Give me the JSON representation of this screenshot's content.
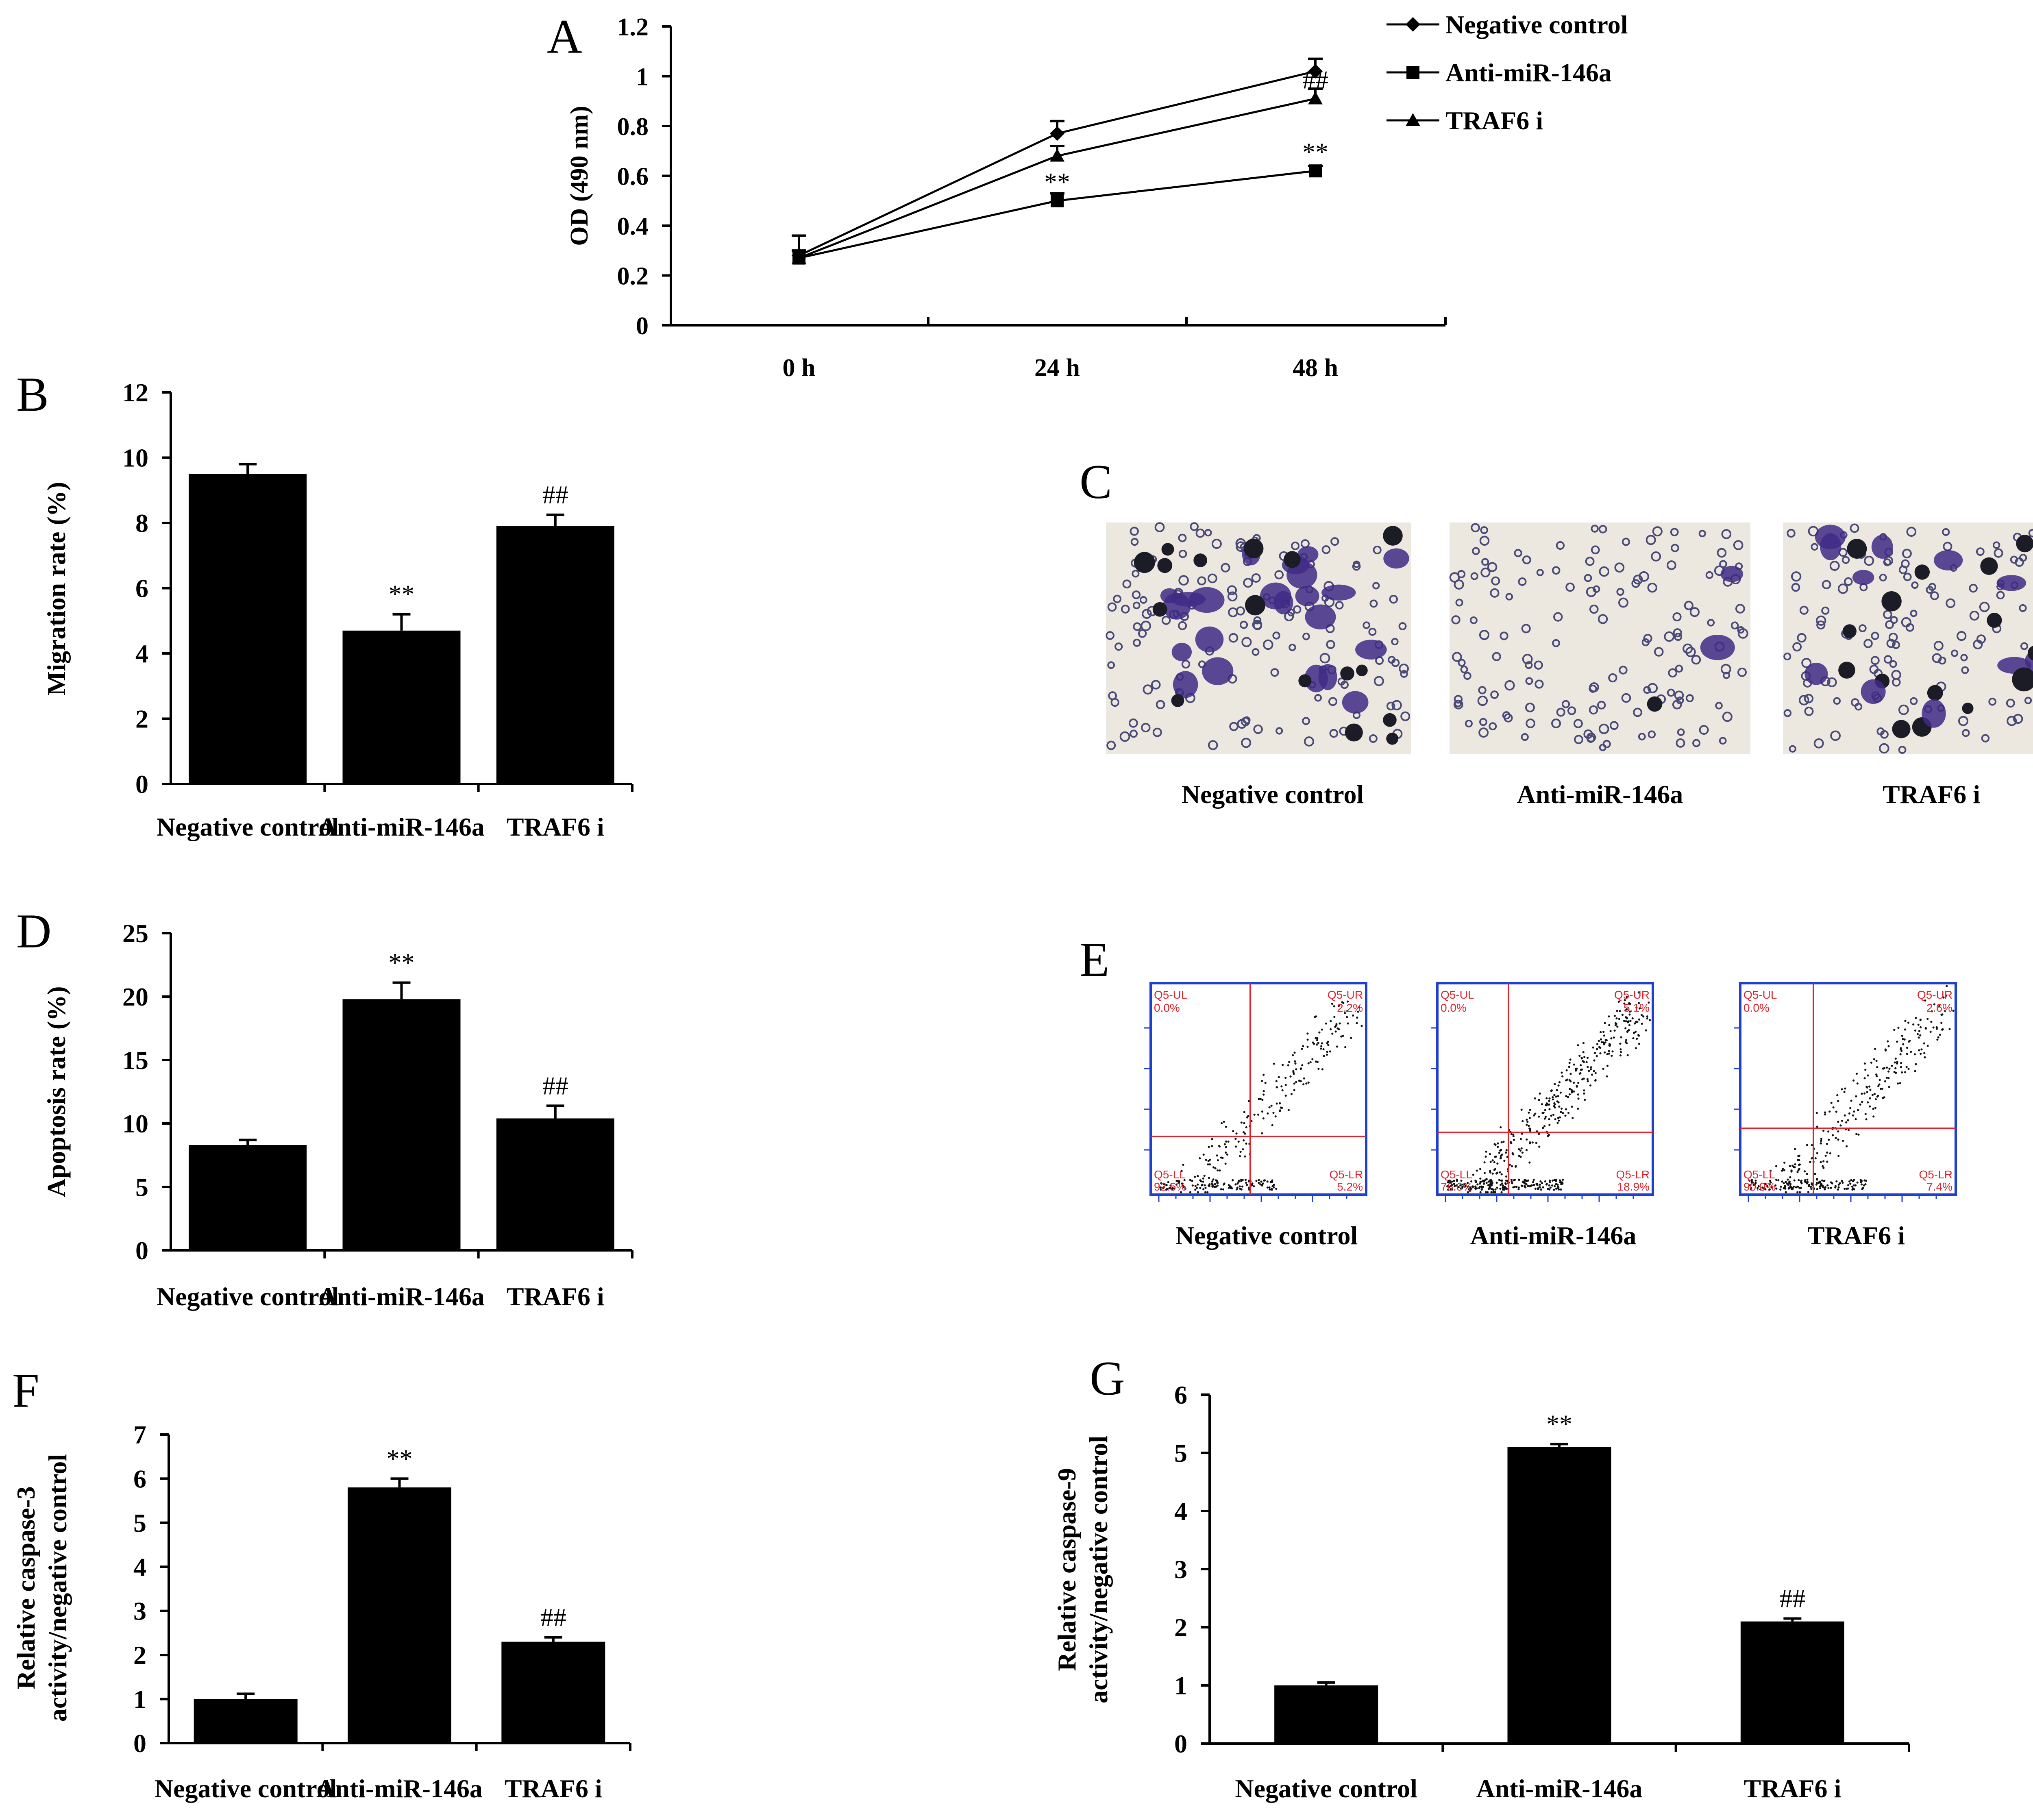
{
  "panels": {
    "A": "A",
    "B": "B",
    "C": "C",
    "D": "D",
    "E": "E",
    "F": "F",
    "G": "G"
  },
  "chart_data": [
    {
      "id": "A",
      "type": "line",
      "x": [
        "0 h",
        "24 h",
        "48 h"
      ],
      "ylabel": "OD (490 nm)",
      "ylim": [
        0,
        1.2
      ],
      "yticks": [
        "0",
        "0.2",
        "0.4",
        "0.6",
        "0.8",
        "1",
        "1.2"
      ],
      "series": [
        {
          "name": "Negative control",
          "marker": "diamond",
          "values": [
            0.28,
            0.77,
            1.02
          ],
          "errors": [
            0.08,
            0.05,
            0.05
          ],
          "sig": [
            "",
            "",
            ""
          ]
        },
        {
          "name": "Anti-miR-146a",
          "marker": "square",
          "values": [
            0.27,
            0.5,
            0.62
          ],
          "errors": [
            0.03,
            0.03,
            0.02
          ],
          "sig": [
            "",
            "**",
            "**"
          ]
        },
        {
          "name": "TRAF6 i",
          "marker": "triangle",
          "values": [
            0.27,
            0.68,
            0.91
          ],
          "errors": [
            0.03,
            0.04,
            0.04
          ],
          "sig": [
            "",
            "",
            "##"
          ]
        }
      ]
    },
    {
      "id": "B",
      "type": "bar",
      "categories": [
        "Negative control",
        "Anti-miR-146a",
        "TRAF6 i"
      ],
      "values": [
        9.5,
        4.7,
        7.9
      ],
      "errors": [
        0.3,
        0.5,
        0.35
      ],
      "sig": [
        "",
        "**",
        "##"
      ],
      "ylabel": "Migration rate (%)",
      "ylim": [
        0,
        12
      ],
      "yticks": [
        "0",
        "2",
        "4",
        "6",
        "8",
        "10",
        "12"
      ]
    },
    {
      "id": "D",
      "type": "bar",
      "categories": [
        "Negative control",
        "Anti-miR-146a",
        "TRAF6 i"
      ],
      "values": [
        8.3,
        19.8,
        10.4
      ],
      "errors": [
        0.4,
        1.3,
        1.0
      ],
      "sig": [
        "",
        "**",
        "##"
      ],
      "ylabel": "Apoptosis rate (%)",
      "ylim": [
        0,
        25
      ],
      "yticks": [
        "0",
        "5",
        "10",
        "15",
        "20",
        "25"
      ]
    },
    {
      "id": "F",
      "type": "bar",
      "categories": [
        "Negative control",
        "Anti-miR-146a",
        "TRAF6 i"
      ],
      "values": [
        1.0,
        5.8,
        2.3
      ],
      "errors": [
        0.12,
        0.2,
        0.1
      ],
      "sig": [
        "",
        "**",
        "##"
      ],
      "ylabel": [
        "Relative caspase-3",
        "activity/negative control"
      ],
      "ylim": [
        0,
        7
      ],
      "yticks": [
        "0",
        "1",
        "2",
        "3",
        "4",
        "5",
        "6",
        "7"
      ]
    },
    {
      "id": "G",
      "type": "bar",
      "categories": [
        "Negative control",
        "Anti-miR-146a",
        "TRAF6 i"
      ],
      "values": [
        1.0,
        5.1,
        2.1
      ],
      "errors": [
        0.05,
        0.05,
        0.05
      ],
      "sig": [
        "",
        "**",
        "##"
      ],
      "ylabel": [
        "Relative caspase-9",
        "activity/negative control"
      ],
      "ylim": [
        0,
        6
      ],
      "yticks": [
        "0",
        "1",
        "2",
        "3",
        "4",
        "5",
        "6"
      ]
    }
  ],
  "micrographs": {
    "captions": [
      "Negative control",
      "Anti-miR-146a",
      "TRAF6 i"
    ]
  },
  "flow": {
    "captions": [
      "Negative control",
      "Anti-miR-146a",
      "TRAF6 i"
    ],
    "plots": [
      {
        "UL": "Q5-UL",
        "ULv": "0.0%",
        "UR": "Q5-UR",
        "URv": "2.2%",
        "LL": "Q5-LL",
        "LLv": "92.5%",
        "LR": "Q5-LR",
        "LRv": "5.2%"
      },
      {
        "UL": "Q5-UL",
        "ULv": "0.0%",
        "UR": "Q5-UR",
        "URv": "5.1%",
        "LL": "Q5-LL",
        "LLv": "76.0%",
        "LR": "Q5-LR",
        "LRv": "18.9%"
      },
      {
        "UL": "Q5-UL",
        "ULv": "0.0%",
        "UR": "Q5-UR",
        "URv": "2.6%",
        "LL": "Q5-LL",
        "LLv": "90.0%",
        "LR": "Q5-LR",
        "LRv": "7.4%"
      }
    ]
  },
  "colors": {
    "bars": "#000000",
    "cell_stain": "#3f2a86",
    "flow_frame": "#1f3fd0",
    "flow_gate": "#e0202a"
  }
}
